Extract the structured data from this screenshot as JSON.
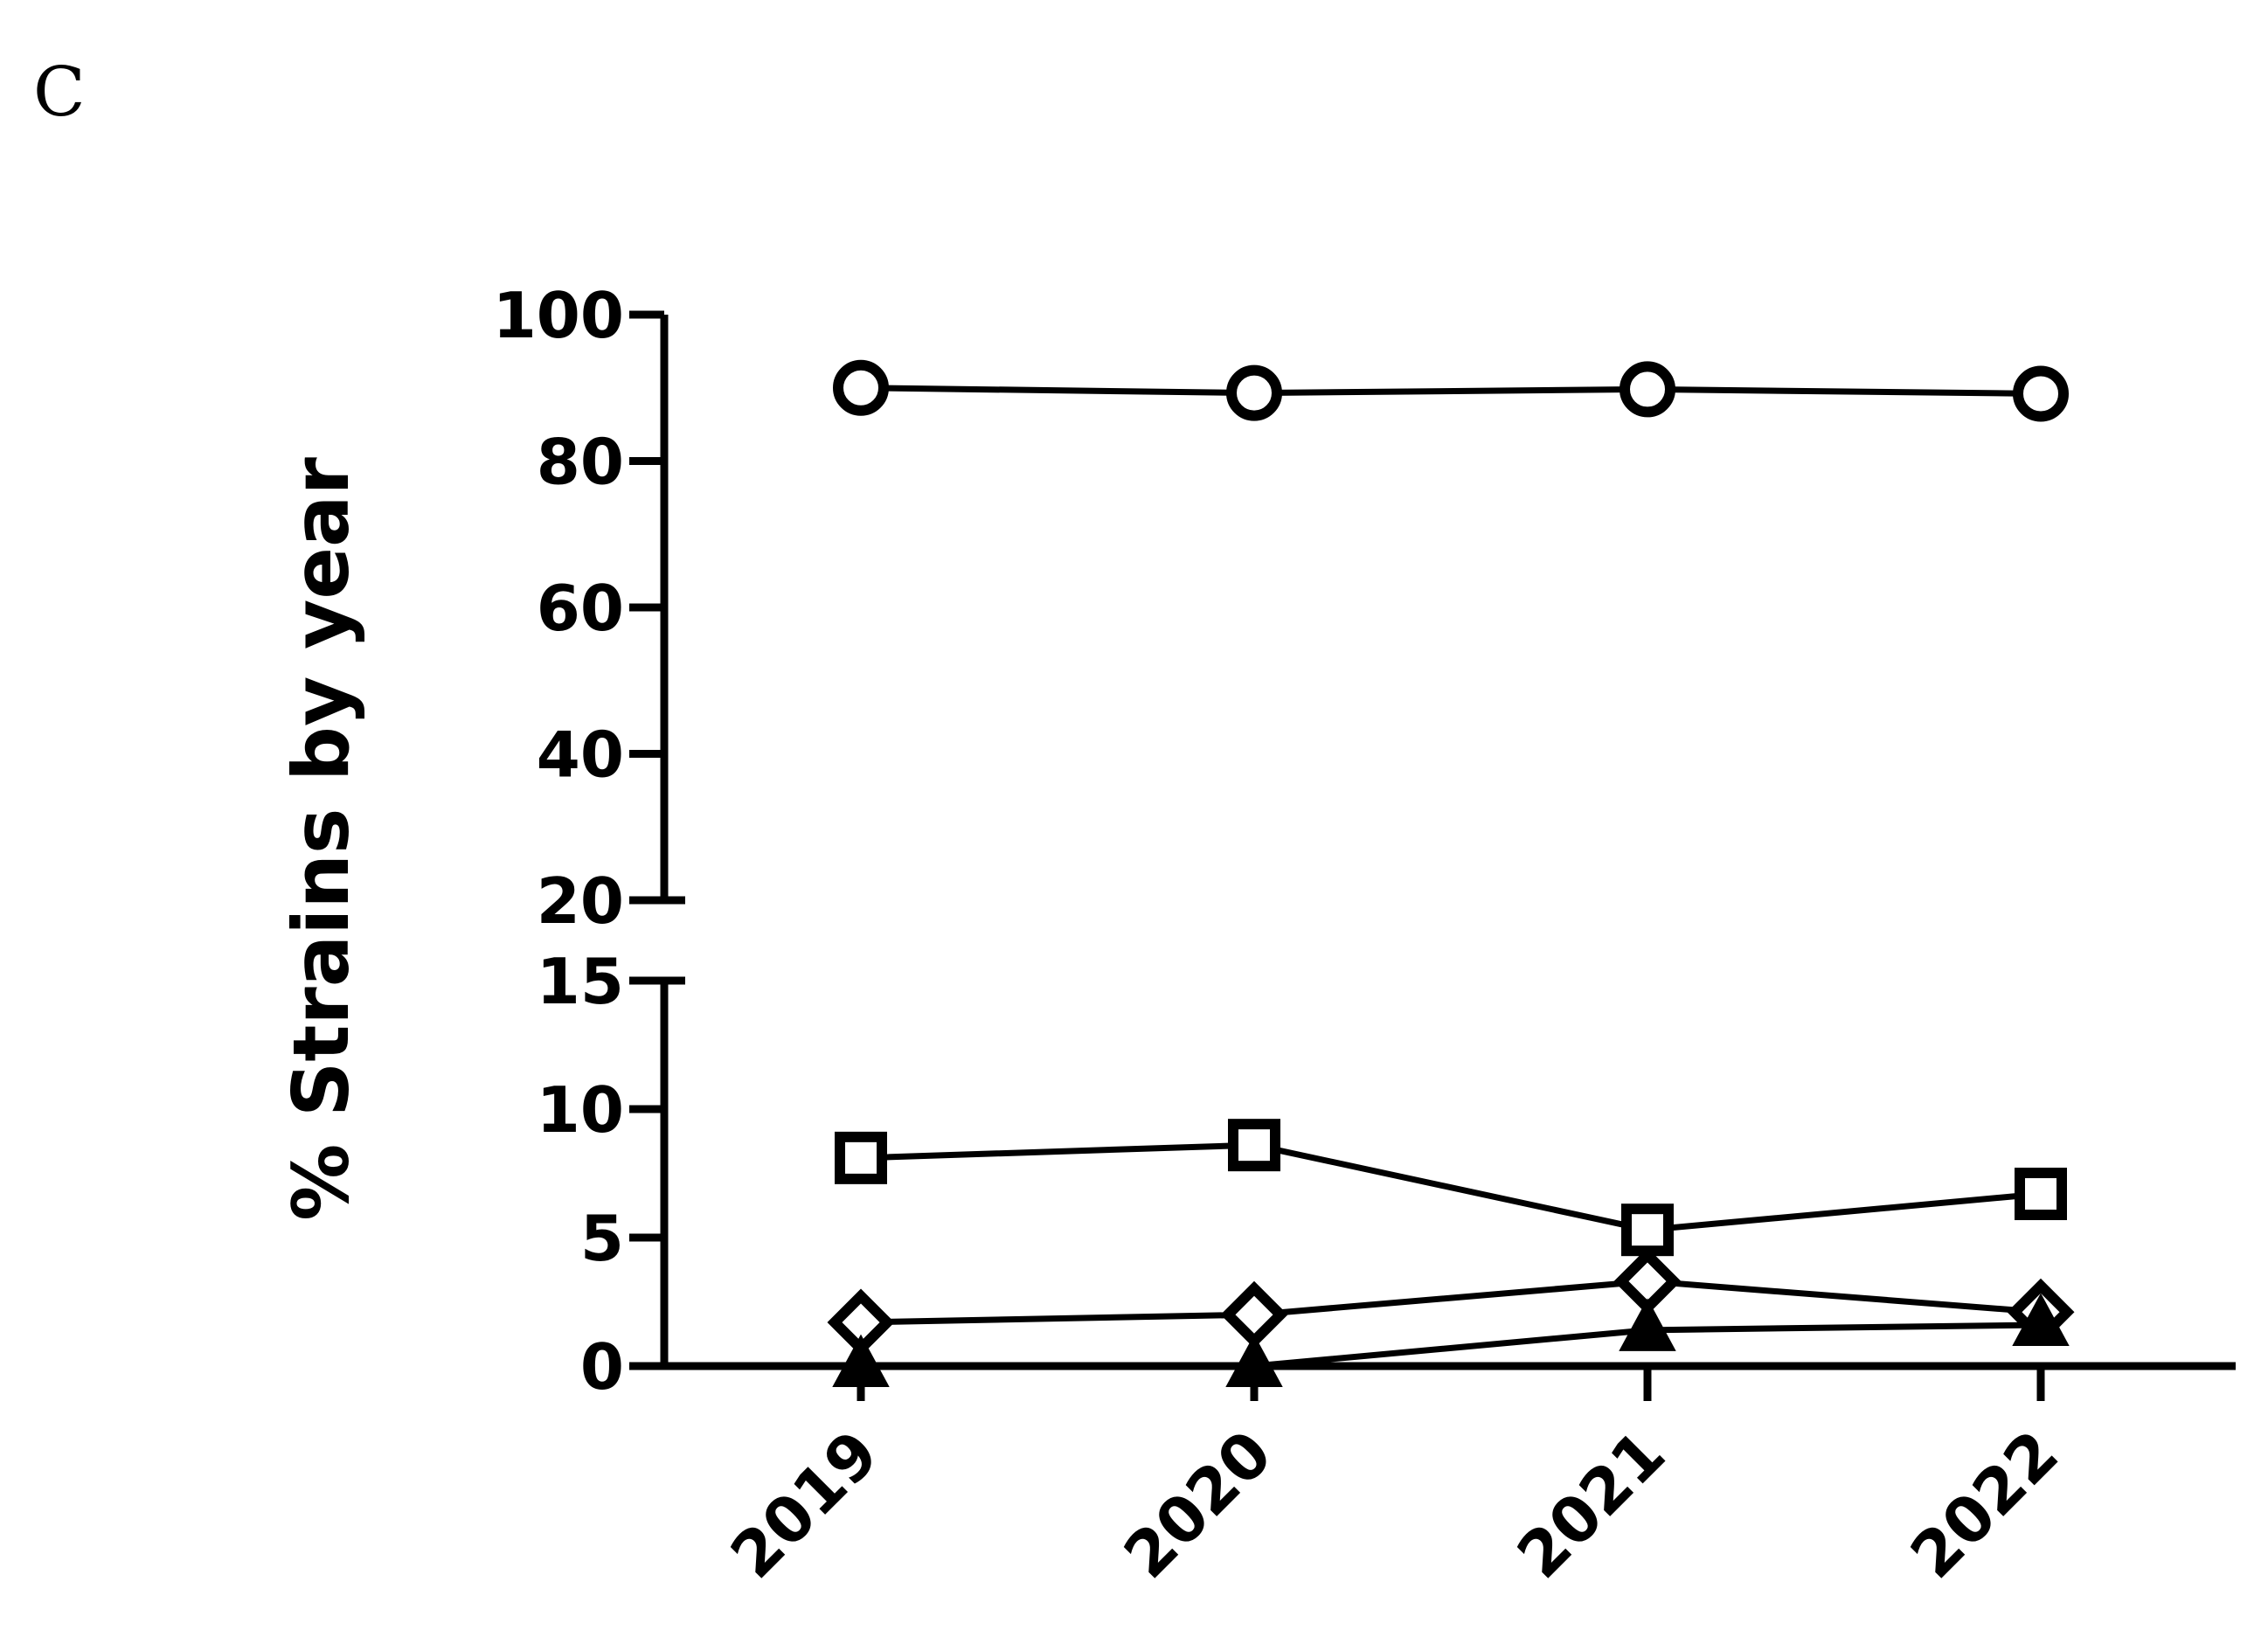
{
  "panel_label": "C",
  "chart_data": {
    "type": "line",
    "title": "",
    "xlabel": "",
    "ylabel": "% Strains by year",
    "categories": [
      "2019",
      "2020",
      "2021",
      "2022"
    ],
    "y_axis_break": {
      "upper_segment": {
        "ylim": [
          20,
          100
        ],
        "ticks": [
          "20",
          "40",
          "60",
          "80",
          "100"
        ]
      },
      "lower_segment": {
        "ylim": [
          0,
          15
        ],
        "ticks": [
          "0",
          "5",
          "10",
          "15"
        ]
      }
    },
    "grid": false,
    "legend": "none",
    "series": [
      {
        "marker": "circle",
        "values": [
          90,
          89.3,
          89.8,
          89.2
        ]
      },
      {
        "marker": "square",
        "values": [
          8.1,
          8.6,
          5.3,
          6.7
        ]
      },
      {
        "marker": "diamond",
        "values": [
          1.7,
          2.0,
          3.3,
          2.1
        ]
      },
      {
        "marker": "triangle",
        "values": [
          0,
          0,
          1.4,
          1.6
        ]
      }
    ],
    "colors": {
      "line": "#000000",
      "background": "#ffffff"
    }
  }
}
